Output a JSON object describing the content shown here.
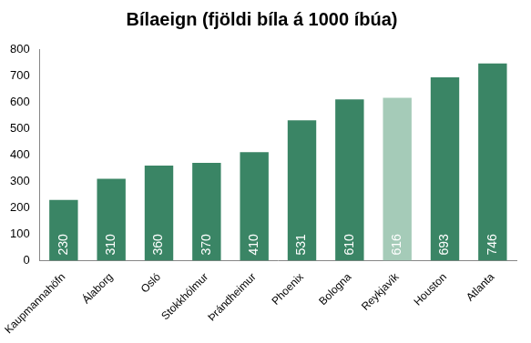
{
  "chart_data": {
    "type": "bar",
    "title": "Bílaeign (fjöldi bíla á 1000 íbúa)",
    "categories": [
      "Kaupmannahöfn",
      "Álaborg",
      "Osló",
      "Stokkhólmur",
      "Þrándheimur",
      "Phoenix",
      "Bologna",
      "Reykjavík",
      "Houston",
      "Atlanta"
    ],
    "values": [
      230,
      310,
      360,
      370,
      410,
      531,
      610,
      616,
      693,
      746
    ],
    "colors": [
      "#3a8565",
      "#3a8565",
      "#3a8565",
      "#3a8565",
      "#3a8565",
      "#3a8565",
      "#3a8565",
      "#a5cbb8",
      "#3a8565",
      "#3a8565"
    ],
    "ylim": [
      0,
      800
    ],
    "yticks": [
      0,
      100,
      200,
      300,
      400,
      500,
      600,
      700,
      800
    ],
    "grid": false,
    "data_labels": true
  }
}
